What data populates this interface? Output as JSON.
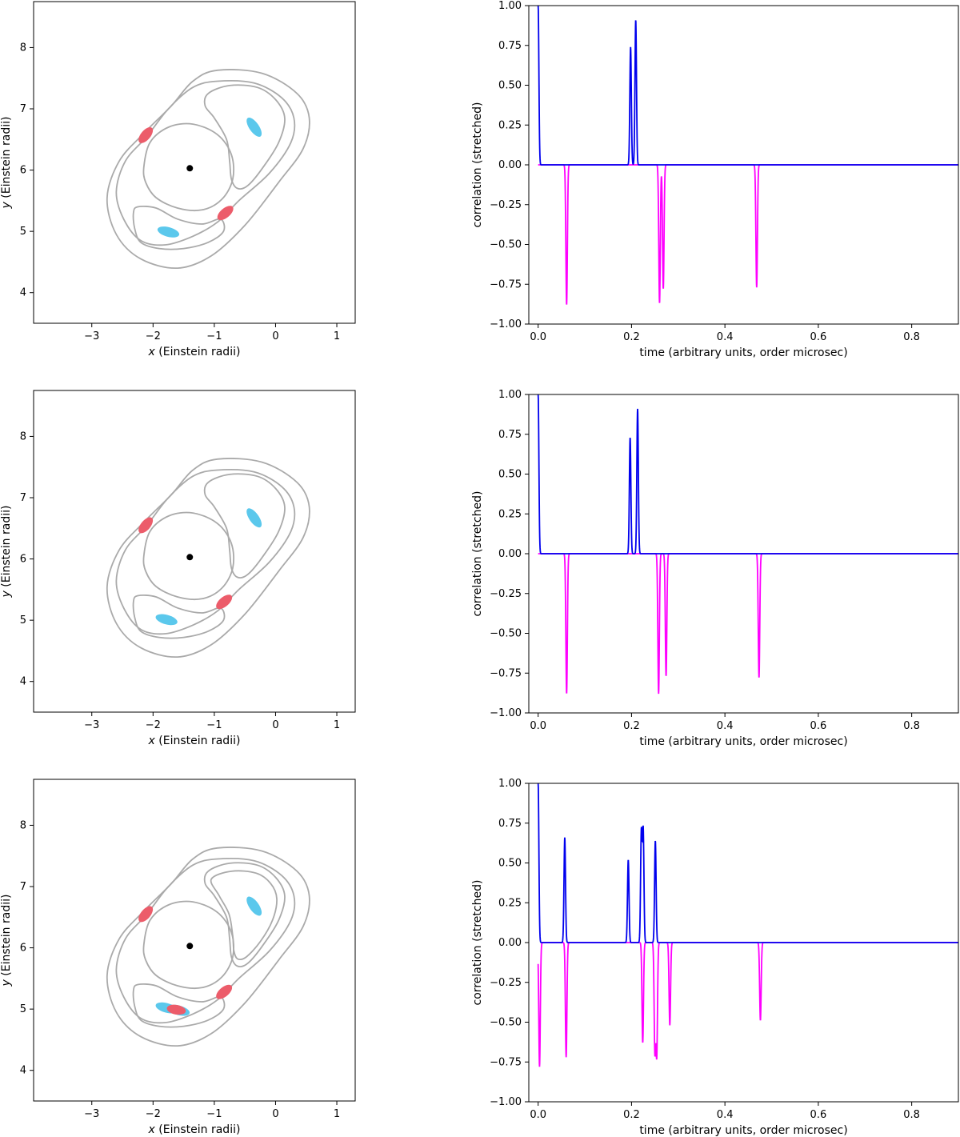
{
  "colors": {
    "contour": "#aaaaaa",
    "cyan_image": "#5bc8ec",
    "red_image": "#ec5c6a",
    "lens": "#000000",
    "positive_peaks": "#0000ee",
    "negative_peaks": "#ff00ff"
  },
  "lens_panel_axes": {
    "xlabel_var": "x",
    "xlabel_unit": " (Einstein radii)",
    "ylabel_var": "y",
    "ylabel_unit": " (Einstein radii)",
    "xlim": [
      -3.95,
      1.3
    ],
    "ylim": [
      3.5,
      8.75
    ],
    "xticks": [
      "−3",
      "−2",
      "−1",
      "0",
      "1"
    ],
    "yticks": [
      "4",
      "5",
      "6",
      "7",
      "8"
    ]
  },
  "corr_panel_axes": {
    "xlabel": "time (arbitrary units, order microsec)",
    "ylabel": "correlation (stretched)",
    "xlim": [
      -0.02,
      0.9
    ],
    "ylim": [
      -1.0,
      1.0
    ],
    "xticks": [
      "0.0",
      "0.2",
      "0.4",
      "0.6",
      "0.8"
    ],
    "yticks": [
      "−1.00",
      "−0.75",
      "−0.50",
      "−0.25",
      "0.00",
      "0.25",
      "0.50",
      "0.75",
      "1.00"
    ]
  },
  "chart_data": [
    {
      "type": "scatter",
      "panel": "lens-plane-1",
      "lens_center": [
        -1.4,
        6.03
      ],
      "cyan_images": [
        [
          -0.35,
          6.7
        ],
        [
          -1.75,
          4.99
        ]
      ],
      "red_images": [
        [
          -2.12,
          6.57
        ],
        [
          -0.82,
          5.3
        ]
      ]
    },
    {
      "type": "line",
      "panel": "correlation-1",
      "series": [
        {
          "color_key": "positive_peaks",
          "peaks": [
            [
              0.0,
              1.0
            ],
            [
              0.198,
              0.74
            ],
            [
              0.209,
              0.91
            ]
          ]
        },
        {
          "color_key": "negative_peaks",
          "peaks": [
            [
              0.061,
              -0.88
            ],
            [
              0.26,
              -0.87
            ],
            [
              0.268,
              -0.78
            ],
            [
              0.468,
              -0.77
            ]
          ]
        }
      ]
    },
    {
      "type": "scatter",
      "panel": "lens-plane-2",
      "lens_center": [
        -1.4,
        6.03
      ],
      "cyan_images": [
        [
          -0.35,
          6.67
        ],
        [
          -1.78,
          5.01
        ]
      ],
      "red_images": [
        [
          -2.12,
          6.55
        ],
        [
          -0.84,
          5.3
        ]
      ]
    },
    {
      "type": "line",
      "panel": "correlation-2",
      "series": [
        {
          "color_key": "positive_peaks",
          "peaks": [
            [
              0.0,
              1.0
            ],
            [
              0.197,
              0.73
            ],
            [
              0.213,
              0.91
            ]
          ]
        },
        {
          "color_key": "negative_peaks",
          "peaks": [
            [
              0.061,
              -0.88
            ],
            [
              0.258,
              -0.88
            ],
            [
              0.274,
              -0.77
            ],
            [
              0.473,
              -0.78
            ]
          ]
        }
      ]
    },
    {
      "type": "scatter",
      "panel": "lens-plane-3",
      "lens_center": [
        -1.4,
        6.03
      ],
      "cyan_images": [
        [
          -0.35,
          6.68
        ],
        [
          -1.78,
          5.02
        ],
        [
          -1.58,
          4.98
        ]
      ],
      "red_images": [
        [
          -2.12,
          6.55
        ],
        [
          -0.84,
          5.28
        ],
        [
          -1.62,
          4.99
        ]
      ]
    },
    {
      "type": "line",
      "panel": "correlation-3",
      "series": [
        {
          "color_key": "positive_peaks",
          "peaks": [
            [
              0.0,
              1.0
            ],
            [
              0.057,
              0.66
            ],
            [
              0.193,
              0.52
            ],
            [
              0.221,
              0.69
            ],
            [
              0.225,
              0.7
            ],
            [
              0.251,
              0.64
            ]
          ]
        },
        {
          "color_key": "negative_peaks",
          "peaks": [
            [
              0.003,
              -0.78
            ],
            [
              0.06,
              -0.72
            ],
            [
              0.224,
              -0.63
            ],
            [
              0.25,
              -0.68
            ],
            [
              0.254,
              -0.7
            ],
            [
              0.282,
              -0.52
            ],
            [
              0.476,
              -0.49
            ]
          ]
        }
      ]
    }
  ]
}
